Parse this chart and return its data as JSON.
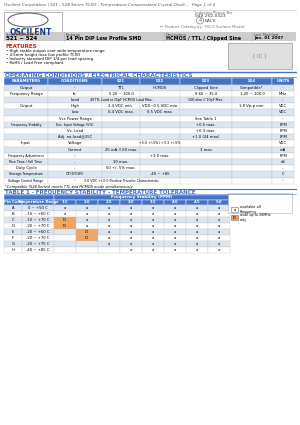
{
  "title_text": "Oscilent Corporation | 521 - 524 Series TCXO - Temperature Compensated Crystal Oscill...   Page 1 of 2",
  "series_number": "521 ~ 524",
  "package": "14 Pin DIP Low Profile SMD",
  "description": "HCMOS / TTL / Clipped Sine",
  "last_modified": "Jan. 01 2007",
  "phone": "949 252-0323",
  "features": [
    "High stable output over wide temperature range",
    "4.5mm height max low profile TCXO",
    "Industry standard DIP 1/4 per lead spacing",
    "RoHS / Lead Free compliant"
  ],
  "op_title": "OPERATING CONDITIONS / ELECTRICAL CHARACTERISTICS",
  "table1_headers": [
    "PARAMETERS",
    "CONDITIONS",
    "521",
    "522",
    "523",
    "524",
    "UNITS"
  ],
  "table1_rows": [
    [
      "Output",
      "-",
      "TTL",
      "HCMOS",
      "Clipped Sine",
      "Compatible*",
      "-"
    ],
    [
      "Frequency Range",
      "fo",
      "5.20 ~ 100.0",
      "",
      "9.60 ~ 35.0",
      "1.20 ~ 100.0",
      "MHz"
    ],
    [
      "",
      "Load",
      "40TTL Load or 15pF HCMOS Load Max.",
      "",
      "10K ohm // 10pF Max.",
      "",
      "-"
    ],
    [
      "Output",
      "High",
      "2.4 VDC min.",
      "VDD~0.5 VDC min.",
      "",
      "1.8 Vp-p min.",
      "VDC"
    ],
    [
      "",
      "Low",
      "0.4 VDC max.",
      "0.5 VDC max.",
      "",
      "",
      "VDC"
    ],
    [
      "",
      "Vcc Power Range",
      "",
      "",
      "See Table 1",
      "",
      "-"
    ],
    [
      "Frequency Stability",
      "Exc. Input Voltage (5%)",
      "",
      "",
      "+0.5 max.",
      "",
      "PPM"
    ],
    [
      "",
      "Vs. Load",
      "",
      "",
      "+0.3 max.",
      "",
      "PPM"
    ],
    [
      "",
      "Adj. no-load@25C",
      "",
      "",
      "+1.0 (24 max)",
      "",
      "PPM"
    ],
    [
      "Input",
      "Voltage",
      "",
      "+5.0 +/-5% / +3.3 +/-5%",
      "",
      "",
      "VDC"
    ],
    [
      "",
      "Current",
      "25 mA // 60 max.",
      "",
      "3 max.",
      "",
      "mA"
    ],
    [
      "Frequency Adjustment",
      "-",
      "",
      "+3.0 max.",
      "",
      "",
      "PPM"
    ],
    [
      "Rise Time / Fall Time",
      "-",
      "10 max.",
      "",
      "",
      "",
      "nS"
    ],
    [
      "Duty Cycle",
      "-",
      "50 +/- 5% max.",
      "",
      "",
      "",
      "-"
    ],
    [
      "Storage Temperature",
      "CT(STOR)",
      "",
      "-40 ~ +85",
      "",
      "",
      "C"
    ],
    [
      "Voltage Control Range",
      "-",
      "3.6 VDC +/-0.0 Positive Transfer Characteristic",
      "",
      "",
      "",
      "-"
    ]
  ],
  "compat_note": "*Compatible (524 Series) meets TTL and HCMOS mode simultaneously",
  "table2_title": "TABLE 1 - FREQUENCY STABILITY - TEMPERATURE TOLERANCE",
  "table2_col_headers": [
    "Pin Code",
    "Temperature Range",
    "1.5",
    "2.0",
    "2.5",
    "3.0",
    "3.5",
    "4.0",
    "4.5",
    "5.0"
  ],
  "table2_rows": [
    [
      "A",
      "0 ~ +50 C",
      "a",
      "a",
      "a",
      "a",
      "a",
      "a",
      "a",
      "a"
    ],
    [
      "B",
      "-10 ~ +60 C",
      "a",
      "a",
      "a",
      "a",
      "a",
      "a",
      "a",
      "a"
    ],
    [
      "C",
      "-10 ~ +70 C",
      "IO",
      "a",
      "a",
      "a",
      "a",
      "a",
      "a",
      "a"
    ],
    [
      "D",
      "-20 ~ +70 C",
      "IO",
      "a",
      "a",
      "a",
      "a",
      "a",
      "a",
      "a"
    ],
    [
      "E",
      "-20 ~ +60 C",
      "",
      "IO",
      "a",
      "a",
      "a",
      "a",
      "a",
      "a"
    ],
    [
      "F",
      "-20 ~ +70 C",
      "",
      "IO",
      "a",
      "a",
      "a",
      "a",
      "a",
      "a"
    ],
    [
      "G",
      "-20 ~ +75 C",
      "",
      "",
      "a",
      "a",
      "a",
      "a",
      "a",
      "a"
    ],
    [
      "H",
      "-40 ~ +85 C",
      "",
      "",
      "",
      "a",
      "a",
      "a",
      "a",
      "a"
    ]
  ],
  "bg_color": "#ffffff",
  "header_blue": "#4472c4",
  "row_light": "#dce6f1",
  "row_white": "#ffffff",
  "orange": "#f4a460"
}
